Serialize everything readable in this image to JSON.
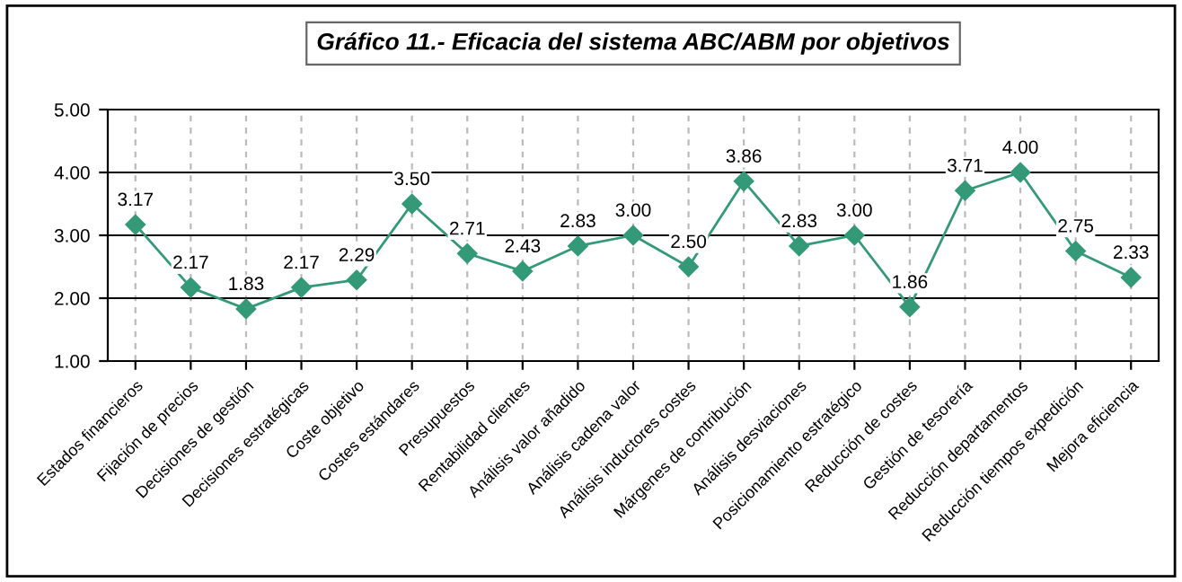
{
  "chart_data": {
    "type": "line",
    "title": "Gráfico 11.- Eficacia del sistema ABC/ABM por objetivos",
    "categories": [
      "Estados financieros",
      "Fijación de precios",
      "Decisiones de gestión",
      "Decisiones estratégicas",
      "Coste objetivo",
      "Costes estándares",
      "Presupuestos",
      "Rentabilidad clientes",
      "Análisis valor añadido",
      "Análisis cadena valor",
      "Análisis inductores costes",
      "Márgenes de contribución",
      "Análisis desviaciones",
      "Posicionamiento estratégico",
      "Reducción de costes",
      "Gestión de tesorería",
      "Reducción departamentos",
      "Reducción tiempos expedición",
      "Mejora eficiencia"
    ],
    "values": [
      3.17,
      2.17,
      1.83,
      2.17,
      2.29,
      3.5,
      2.71,
      2.43,
      2.83,
      3.0,
      2.5,
      3.86,
      2.83,
      3.0,
      1.86,
      3.71,
      4.0,
      2.75,
      2.33
    ],
    "value_labels": [
      "3.17",
      "2.17",
      "1.83",
      "2.17",
      "2.29",
      "3.50",
      "2.71",
      "2.43",
      "2.83",
      "3.00",
      "2.50",
      "3.86",
      "2.83",
      "3.00",
      "1.86",
      "3.71",
      "4.00",
      "2.75",
      "2.33"
    ],
    "color": "#339977",
    "marker": "diamond",
    "ylim": [
      1,
      5
    ],
    "yticks": [
      {
        "value": 1,
        "label": "1.00"
      },
      {
        "value": 2,
        "label": "2.00"
      },
      {
        "value": 3,
        "label": "3.00"
      },
      {
        "value": 4,
        "label": "4.00"
      },
      {
        "value": 5,
        "label": "5.00"
      }
    ],
    "grid": true
  }
}
